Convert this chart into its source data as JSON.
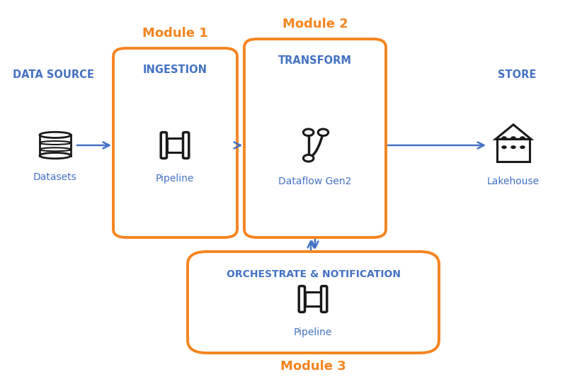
{
  "bg_color": "#ffffff",
  "orange": "#F5841F",
  "blue_text": "#4472C4",
  "arrow_blue": "#4472C4",
  "dark": "#1a1a1a",
  "module1_label": "Module 1",
  "module2_label": "Module 2",
  "module3_label": "Module 3",
  "datasource_label": "DATA SOURCE",
  "ingestion_label": "INGESTION",
  "transform_label": "TRANSFORM",
  "store_label": "STORE",
  "datasets_label": "Datasets",
  "pipeline_label1": "Pipeline",
  "dataflow_label": "Dataflow Gen2",
  "lakehouse_label": "Lakehouse",
  "orchestrate_label": "ORCHESTRATE & NOTIFICATION",
  "pipeline_label2": "Pipeline",
  "fig_w": 8.22,
  "fig_h": 5.39,
  "dpi": 100
}
